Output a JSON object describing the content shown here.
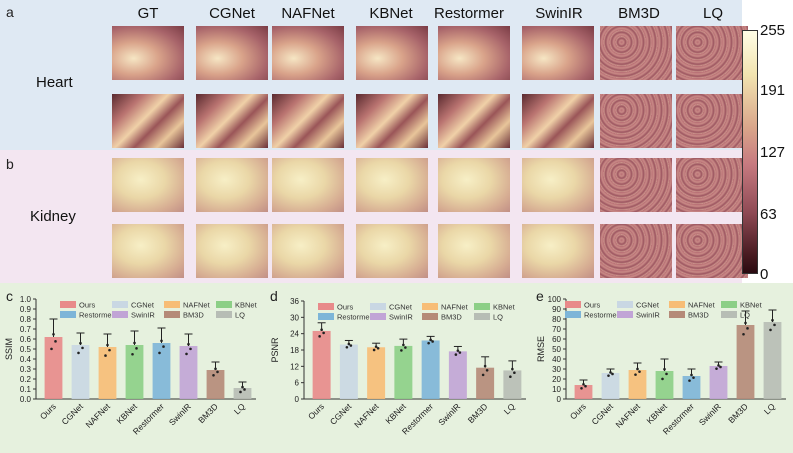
{
  "figure": {
    "panel_letters": [
      "a",
      "b",
      "c",
      "d",
      "e"
    ],
    "methods": [
      "GT",
      "CGNet",
      "NAFNet",
      "KBNet",
      "Restormer",
      "SwinIR",
      "BM3D",
      "LQ"
    ],
    "rows": {
      "heart": "Heart",
      "kidney": "Kidney"
    },
    "colorbar_ticks": [
      "255",
      "191",
      "127",
      "63",
      "0"
    ],
    "colors": {
      "heart_bg": "#dfe9f3",
      "kidney_bg": "#f3e6f1",
      "chart_bg": "#e6f1de"
    }
  },
  "chart_data": [
    {
      "type": "bar",
      "title": "",
      "xlabel": "",
      "ylabel": "SSIM",
      "categories": [
        "Ours",
        "CGNet",
        "NAFNet",
        "KBNet",
        "Restormer",
        "SwinIR",
        "BM3D",
        "LQ"
      ],
      "legend": [
        "Ours",
        "CGNet",
        "NAFNet",
        "KBNet",
        "Restormer",
        "SwinIR",
        "BM3D",
        "LQ"
      ],
      "values": [
        0.62,
        0.54,
        0.52,
        0.54,
        0.56,
        0.53,
        0.29,
        0.11
      ],
      "errors": [
        0.18,
        0.12,
        0.13,
        0.14,
        0.15,
        0.12,
        0.08,
        0.06
      ],
      "ylim": [
        0.0,
        1.0
      ],
      "yticks": [
        "0.0",
        "0.1",
        "0.2",
        "0.3",
        "0.4",
        "0.5",
        "0.6",
        "0.7",
        "0.8",
        "0.9",
        "1.0"
      ],
      "colors": [
        "#e88a8a",
        "#c9d7e3",
        "#f7bd76",
        "#8ccf86",
        "#7db5d8",
        "#c1a4d6",
        "#b58a78",
        "#b7bdb5"
      ]
    },
    {
      "type": "bar",
      "title": "",
      "xlabel": "",
      "ylabel": "PSNR",
      "categories": [
        "Ours",
        "CGNet",
        "NAFNet",
        "KBNet",
        "Restormer",
        "SwinIR",
        "BM3D",
        "LQ"
      ],
      "legend": [
        "Ours",
        "CGNet",
        "NAFNet",
        "KBNet",
        "Restormer",
        "SwinIR",
        "BM3D",
        "LQ"
      ],
      "values": [
        25,
        20,
        19,
        19.5,
        21.5,
        17.5,
        11.5,
        10.5
      ],
      "errors": [
        3,
        1.5,
        1.5,
        2.5,
        1.5,
        1.8,
        4,
        3.5
      ],
      "ylim": [
        0,
        36
      ],
      "yticks": [
        "0",
        "6",
        "12",
        "18",
        "24",
        "30",
        "36"
      ],
      "colors": [
        "#e88a8a",
        "#c9d7e3",
        "#f7bd76",
        "#8ccf86",
        "#7db5d8",
        "#c1a4d6",
        "#b58a78",
        "#b7bdb5"
      ]
    },
    {
      "type": "bar",
      "title": "",
      "xlabel": "",
      "ylabel": "RMSE",
      "categories": [
        "Ours",
        "CGNet",
        "NAFNet",
        "KBNet",
        "Restormer",
        "SwinIR",
        "BM3D",
        "LQ"
      ],
      "legend": [
        "Ours",
        "CGNet",
        "NAFNet",
        "KBNet",
        "Restormer",
        "SwinIR",
        "BM3D",
        "LQ"
      ],
      "values": [
        14,
        26,
        29,
        28,
        23,
        33,
        74,
        77
      ],
      "errors": [
        5,
        4,
        7,
        12,
        7,
        4,
        14,
        12
      ],
      "ylim": [
        0,
        100
      ],
      "yticks": [
        "0",
        "10",
        "20",
        "30",
        "40",
        "50",
        "60",
        "70",
        "80",
        "90",
        "100"
      ],
      "colors": [
        "#e88a8a",
        "#c9d7e3",
        "#f7bd76",
        "#8ccf86",
        "#7db5d8",
        "#c1a4d6",
        "#b58a78",
        "#b7bdb5"
      ]
    }
  ]
}
